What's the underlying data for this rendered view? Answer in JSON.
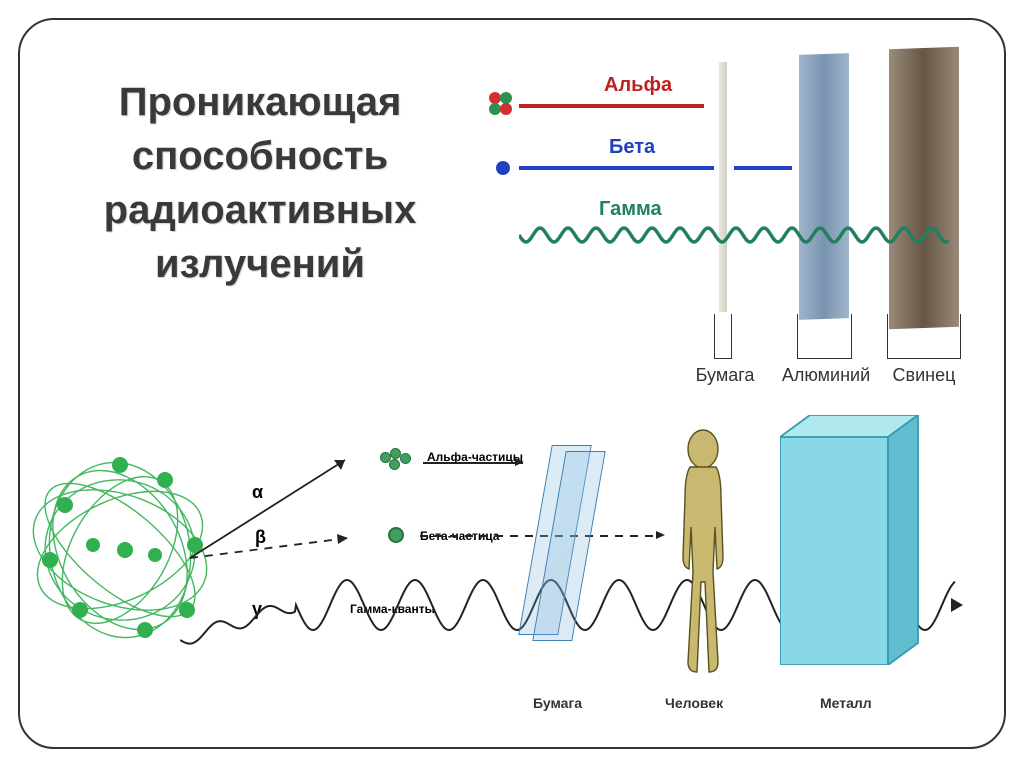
{
  "title": "Проникающая способность радиоактивных излучений",
  "top": {
    "alpha": {
      "label": "Альфа",
      "color": "#c02020",
      "particle_colors": [
        "#d03030",
        "#309050"
      ],
      "line_width": 4,
      "stop_at": "paper"
    },
    "beta": {
      "label": "Бета",
      "color": "#2040c0",
      "dot_color": "#2040c0",
      "line_width": 4,
      "stop_at": "aluminum"
    },
    "gamma": {
      "label": "Гамма",
      "color": "#208060",
      "wave_amplitude": 7,
      "wave_period": 28,
      "stop_at": "lead"
    },
    "materials": [
      {
        "label": "Бумага",
        "color": "#e8e8e0"
      },
      {
        "label": "Алюминий",
        "color": "#8aa0b8"
      },
      {
        "label": "Свинец",
        "color": "#7a6a5a"
      }
    ]
  },
  "bottom": {
    "greek": {
      "alpha": "α",
      "beta": "β",
      "gamma": "γ"
    },
    "labels": {
      "alpha": "Альфа-частицы",
      "beta": "Бета-частица",
      "gamma": "Гамма-кванты",
      "paper": "Бумага",
      "human": "Человек",
      "metal": "Металл"
    },
    "source_color": "#30b050",
    "gamma_wave": {
      "amplitude": 25,
      "period": 68,
      "color": "#222",
      "width": 2
    }
  },
  "frame": {
    "border_radius": 36,
    "border_color": "#333"
  }
}
